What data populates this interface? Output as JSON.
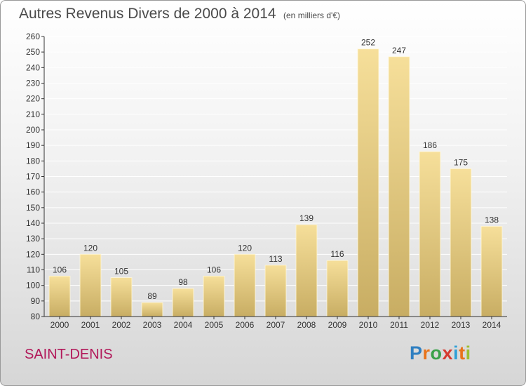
{
  "title": "Autres Revenus Divers de 2000 à 2014",
  "unit": "(en milliers d'€)",
  "place": "SAINT-DENIS",
  "brand": {
    "letters": [
      "P",
      "r",
      "o",
      "x",
      "i",
      "t",
      "i"
    ],
    "colors": [
      "#2f7fc1",
      "#e8731a",
      "#3aa14a",
      "#d63a2f",
      "#2f9fd6",
      "#e8731a",
      "#9bbf2f"
    ]
  },
  "colors": {
    "bar_light": "#f6df9a",
    "bar_dark": "#c8ad63",
    "axis": "#333333",
    "grid": "#ffffff",
    "label": "#333333"
  },
  "chart_data": {
    "type": "bar",
    "title": "Autres Revenus Divers de 2000 à 2014",
    "categories": [
      "2000",
      "2001",
      "2002",
      "2003",
      "2004",
      "2005",
      "2006",
      "2007",
      "2008",
      "2009",
      "2010",
      "2011",
      "2012",
      "2013",
      "2014"
    ],
    "values": [
      106,
      120,
      105,
      89,
      98,
      106,
      120,
      113,
      139,
      116,
      252,
      247,
      186,
      175,
      138
    ],
    "xlabel": "",
    "ylabel": "",
    "ylim": [
      80,
      260
    ],
    "yticks": [
      80,
      90,
      100,
      110,
      120,
      130,
      140,
      150,
      160,
      170,
      180,
      190,
      200,
      210,
      220,
      230,
      240,
      250,
      260
    ],
    "grid": true,
    "data_labels": true,
    "legend": "none"
  }
}
